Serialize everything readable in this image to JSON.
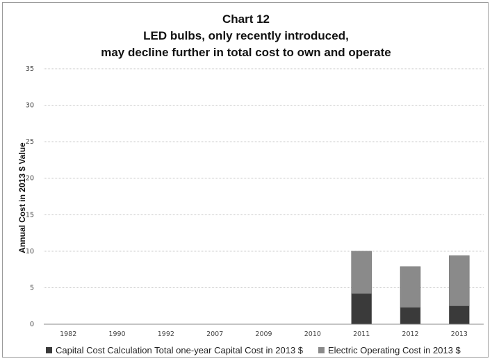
{
  "chart_data": {
    "type": "bar",
    "stacked": true,
    "title": "Chart 12",
    "subtitle_lines": [
      "LED bulbs, only recently introduced,",
      "may decline further in total cost to own and operate"
    ],
    "xlabel": "",
    "ylabel": "Annual Cost in 2013 $ Value",
    "ylim": [
      0,
      35
    ],
    "yticks": [
      0,
      5,
      10,
      15,
      20,
      25,
      30,
      35
    ],
    "grid": true,
    "legend_position": "bottom",
    "categories": [
      "1982",
      "1990",
      "1992",
      "2007",
      "2009",
      "2010",
      "2011",
      "2012",
      "2013"
    ],
    "series": [
      {
        "name": "Capital Cost Calculation Total one-year Capital Cost in 2013 $",
        "color": "#3a3a3a",
        "values": [
          0,
          0,
          0,
          0,
          0,
          0,
          4.2,
          2.3,
          2.5
        ]
      },
      {
        "name": "Electric Operating Cost in 2013 $",
        "color": "#8a8a8a",
        "values": [
          0,
          0,
          0,
          0,
          0,
          0,
          5.8,
          5.6,
          6.9
        ]
      }
    ]
  }
}
